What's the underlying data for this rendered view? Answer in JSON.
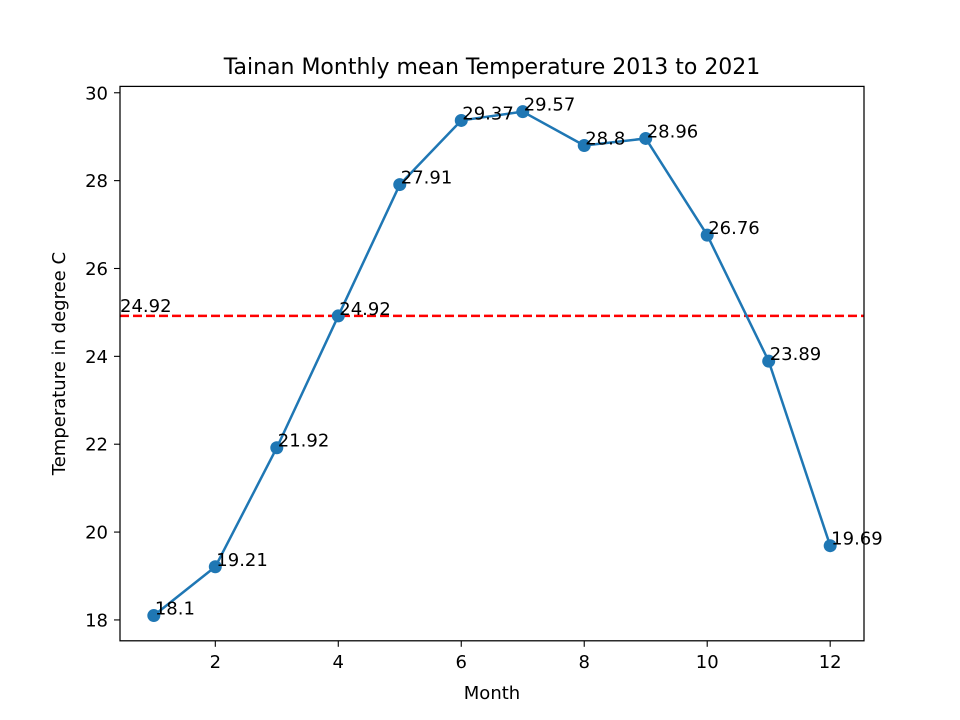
{
  "chart_data": {
    "type": "line",
    "title": "Tainan Monthly mean Temperature 2013 to 2021",
    "xlabel": "Month",
    "ylabel": "Temperature in degree C",
    "xlim": [
      0.45,
      12.55
    ],
    "ylim": [
      17.525,
      30.145
    ],
    "x_ticks": [
      2,
      4,
      6,
      8,
      10,
      12
    ],
    "y_ticks": [
      18,
      20,
      22,
      24,
      26,
      28,
      30
    ],
    "grid": false,
    "series": [
      {
        "x": [
          1,
          2,
          3,
          4,
          5,
          6,
          7,
          8,
          9,
          10,
          11,
          12
        ],
        "values": [
          18.1,
          19.21,
          21.92,
          24.92,
          27.91,
          29.37,
          29.57,
          28.8,
          28.96,
          26.76,
          23.89,
          19.69
        ],
        "labels": [
          "18.1",
          "19.21",
          "21.92",
          "24.92",
          "27.91",
          "29.37",
          "29.57",
          "28.8",
          "28.96",
          "26.76",
          "23.89",
          "19.69"
        ],
        "color": "#1f77b4",
        "marker": "circle"
      }
    ],
    "reference_line": {
      "value": 24.92,
      "label": "24.92",
      "color": "#ff0000",
      "style": "dashed"
    }
  }
}
